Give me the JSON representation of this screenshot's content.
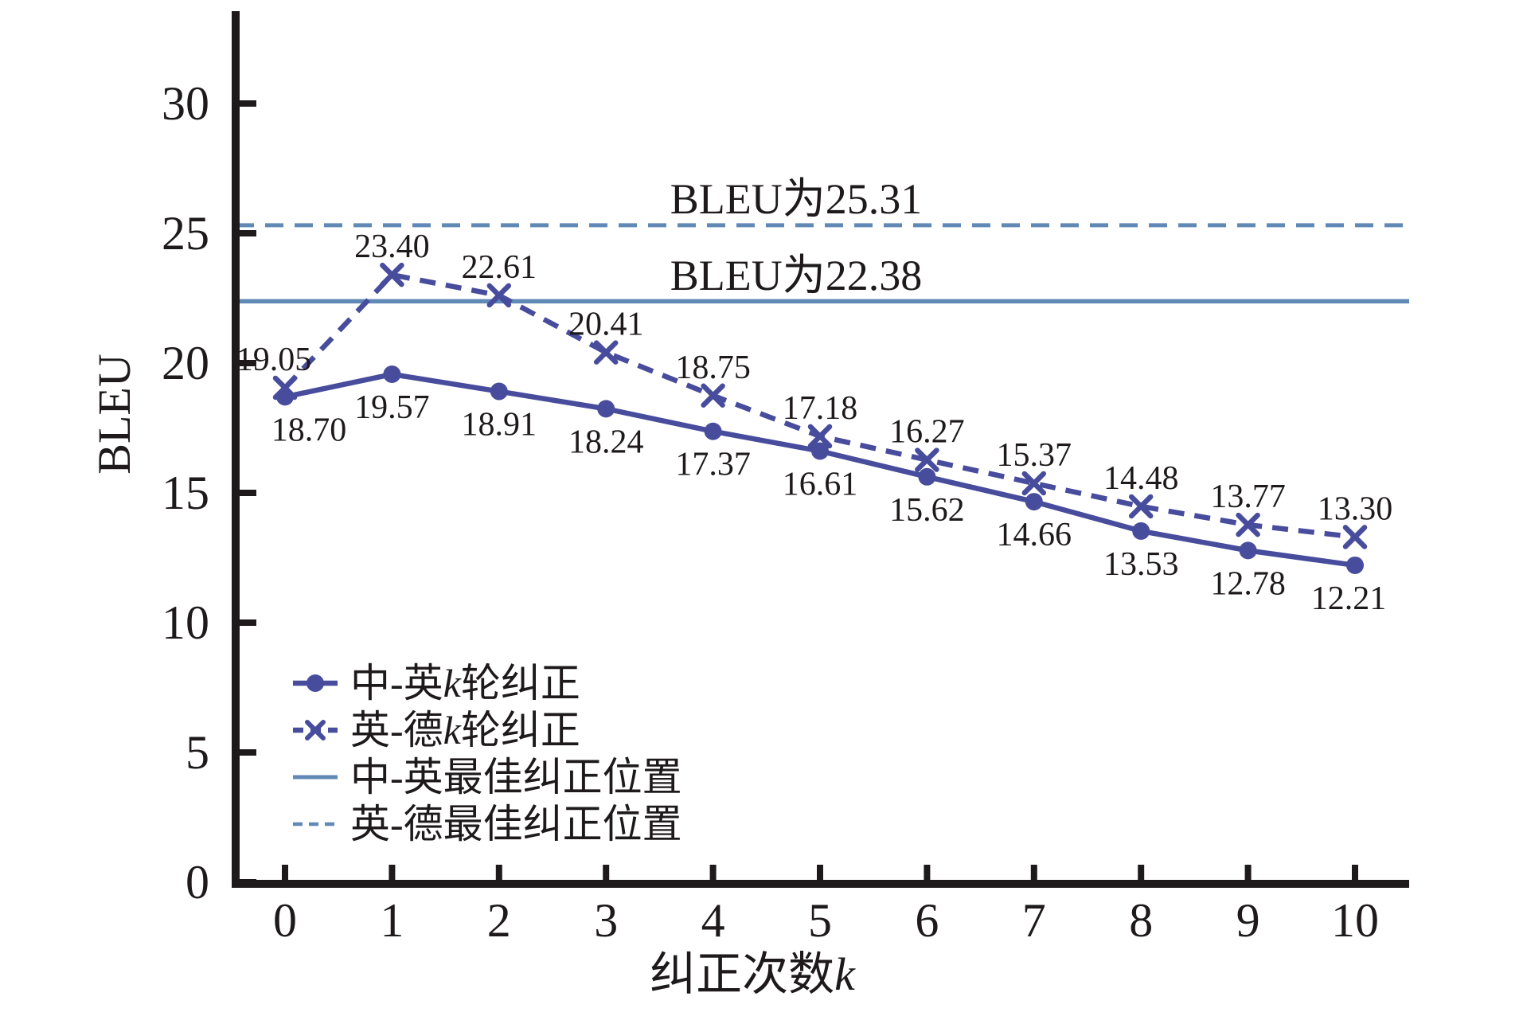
{
  "axes": {
    "x_ticks": [
      0,
      1,
      2,
      3,
      4,
      5,
      6,
      7,
      8,
      9,
      10
    ],
    "y_ticks": [
      0,
      5,
      10,
      15,
      20,
      25,
      30
    ]
  },
  "chart_data": {
    "type": "line",
    "title": "",
    "x_axis_label": "纠正次数k",
    "y_axis_label": "BLEU",
    "x": [
      0,
      1,
      2,
      3,
      4,
      5,
      6,
      7,
      8,
      9,
      10
    ],
    "x_range": [
      -0.5,
      10.5
    ],
    "y_range": [
      0,
      33.6
    ],
    "grid": false,
    "legend_position": "lower left",
    "series": [
      {
        "name": "中-英k轮纠正",
        "values": [
          18.7,
          19.57,
          18.91,
          18.24,
          17.37,
          16.61,
          15.62,
          14.66,
          13.53,
          12.78,
          12.21
        ],
        "color": "#474C9C",
        "line_style": "solid",
        "marker": "circle",
        "label_side": "below",
        "label_dx": [
          30,
          0,
          0,
          0,
          0,
          0,
          0,
          0,
          0,
          0,
          -8
        ]
      },
      {
        "name": "英-德k轮纠正",
        "values": [
          19.05,
          23.4,
          22.61,
          20.41,
          18.75,
          17.18,
          16.27,
          15.37,
          14.48,
          13.77,
          13.3
        ],
        "color": "#474C9C",
        "line_style": "dashed",
        "marker": "x",
        "label_side": "above",
        "label_dx": [
          -14,
          0,
          0,
          0,
          0,
          0,
          0,
          0,
          0,
          0,
          0
        ]
      }
    ],
    "reference_lines": [
      {
        "name": "中-英最佳纠正位置",
        "value": 22.38,
        "annotation": "BLEU为22.38",
        "color": "#6089B6",
        "line_style": "solid"
      },
      {
        "name": "英-德最佳纠正位置",
        "value": 25.31,
        "annotation": "BLEU为25.31",
        "color": "#6089B6",
        "line_style": "dashed"
      }
    ],
    "legend": [
      {
        "label": "中-英k轮纠正"
      },
      {
        "label": "英-德k轮纠正"
      },
      {
        "label": "中-英最佳纠正位置"
      },
      {
        "label": "英-德最佳纠正位置"
      }
    ]
  }
}
